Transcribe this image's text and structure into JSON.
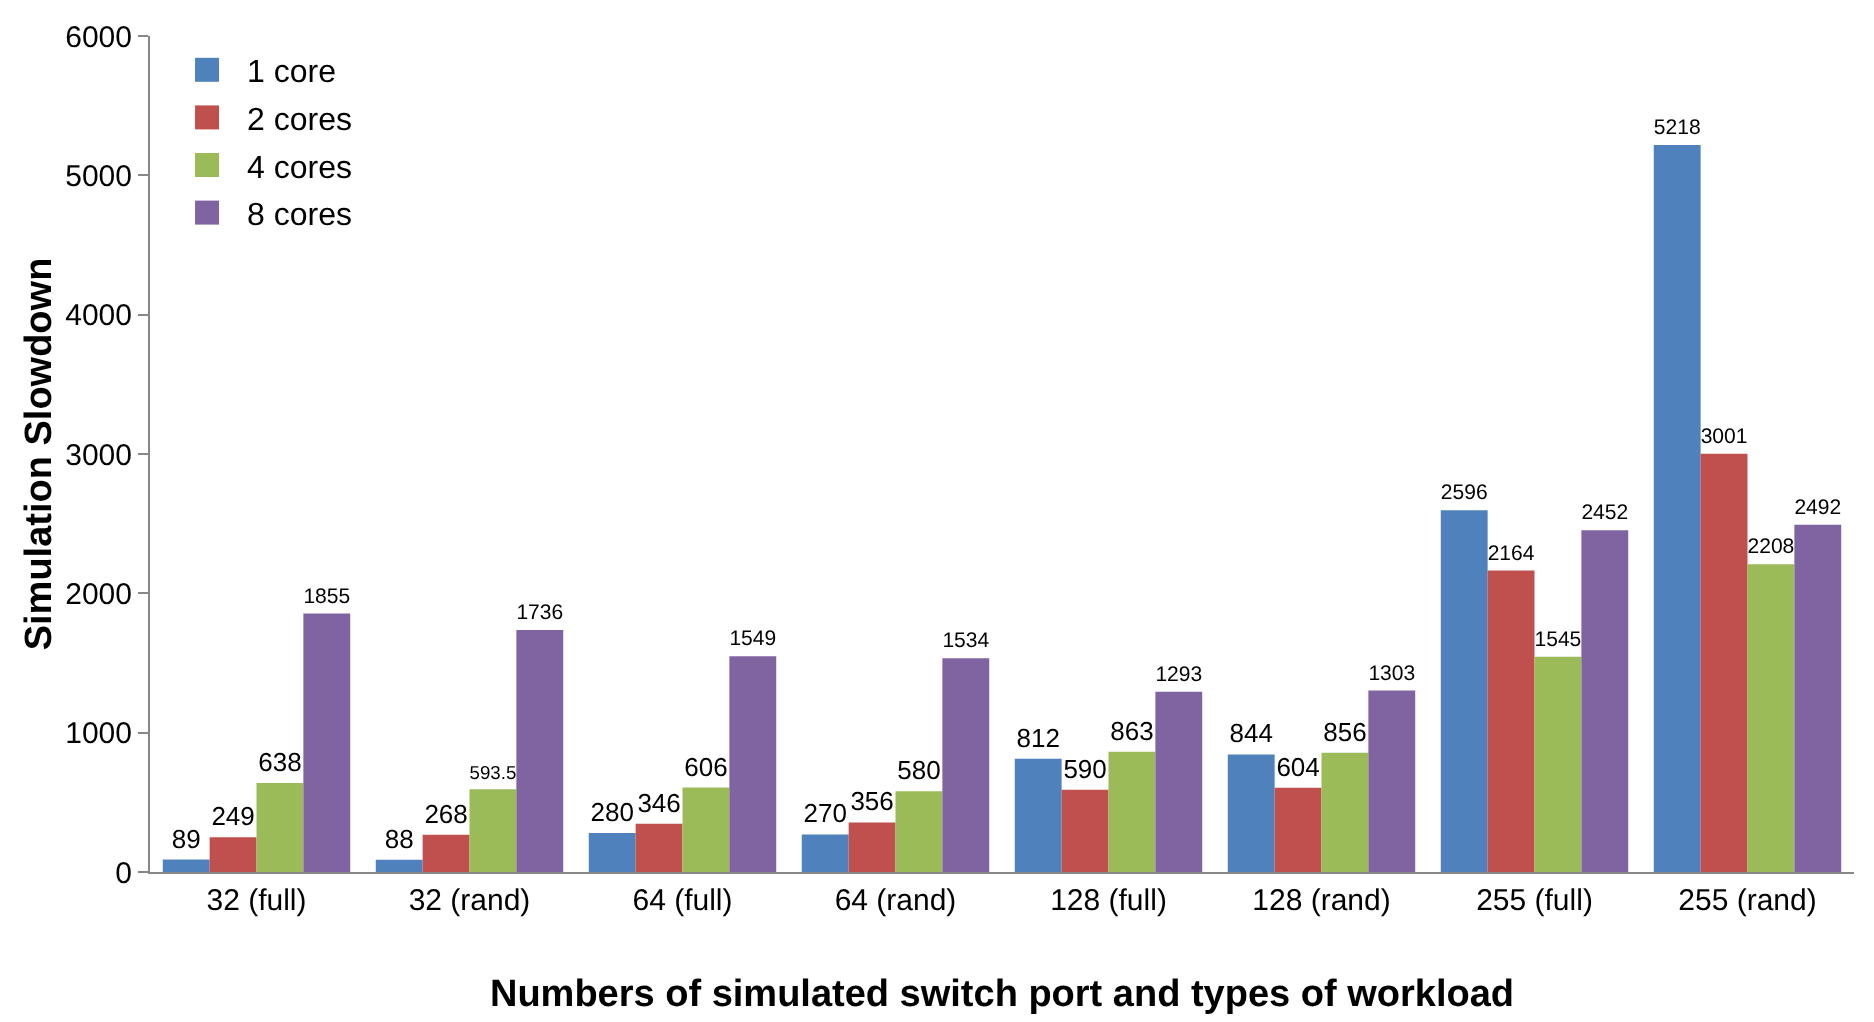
{
  "chart_data": {
    "type": "bar",
    "xlabel": "Numbers of simulated switch port and types of workload",
    "ylabel": "Simulation Slowdown",
    "categories": [
      "32 (full)",
      "32 (rand)",
      "64 (full)",
      "64 (rand)",
      "128 (full)",
      "128 (rand)",
      "255 (full)",
      "255 (rand)"
    ],
    "series": [
      {
        "name": "1 core",
        "color": "#4f81bd",
        "values": [
          89,
          88,
          280,
          270,
          812,
          844,
          2596,
          5218
        ]
      },
      {
        "name": "2 cores",
        "color": "#c0504d",
        "values": [
          249,
          268,
          346,
          356,
          590,
          604,
          2164,
          3001
        ]
      },
      {
        "name": "4 cores",
        "color": "#9bbb59",
        "values": [
          638,
          593.5,
          606,
          580,
          863,
          856,
          1545,
          2208
        ]
      },
      {
        "name": "8 cores",
        "color": "#8064a2",
        "values": [
          1855,
          1736,
          1549,
          1534,
          1293,
          1303,
          2452,
          2492
        ]
      }
    ],
    "ylim": [
      0,
      6000
    ],
    "yticks": [
      0,
      1000,
      2000,
      3000,
      4000,
      5000,
      6000
    ],
    "grid": false,
    "legend": "top left",
    "data_labels": true
  }
}
